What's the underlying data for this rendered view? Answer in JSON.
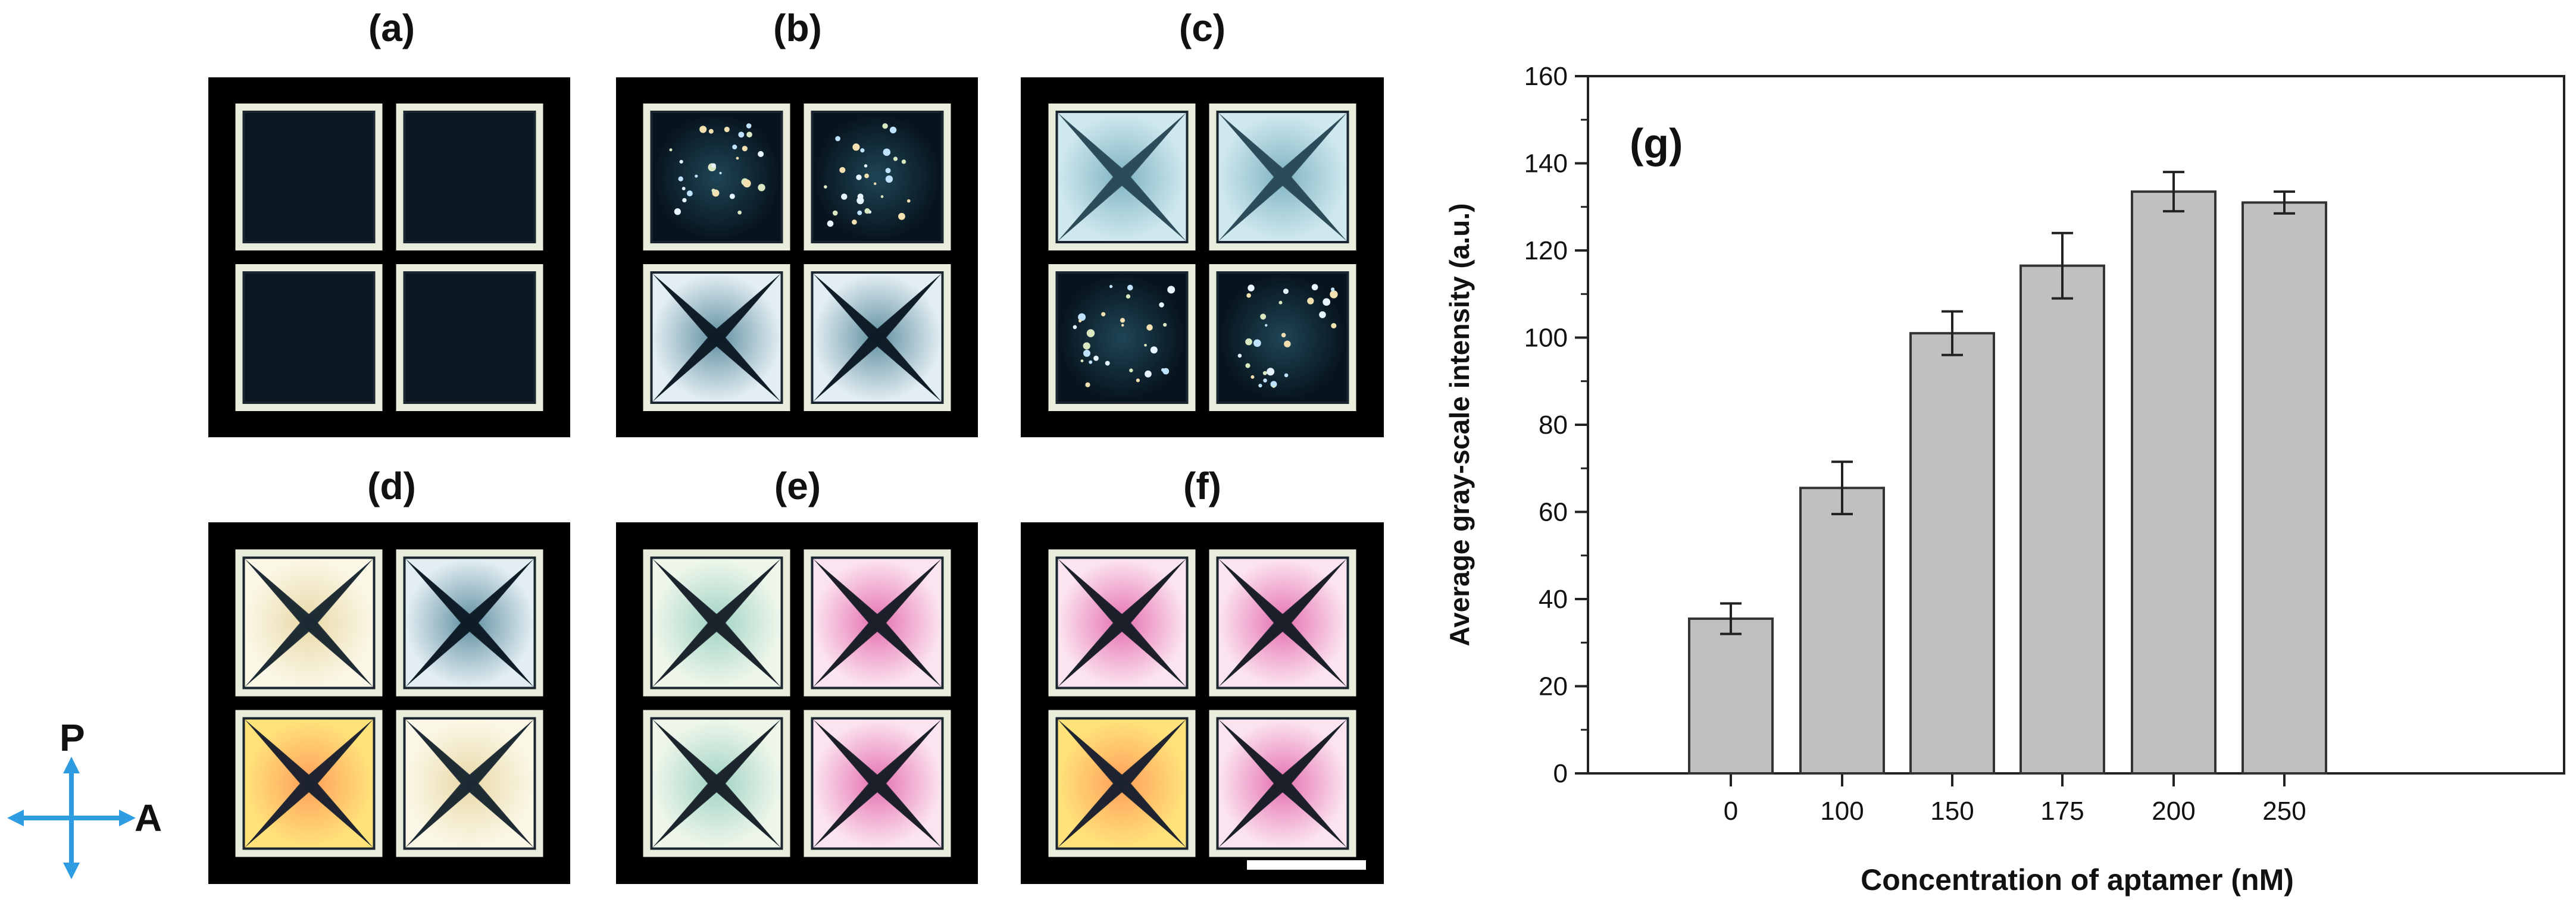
{
  "panels": {
    "a": {
      "label": "(a)"
    },
    "b": {
      "label": "(b)"
    },
    "c": {
      "label": "(c)"
    },
    "d": {
      "label": "(d)"
    },
    "e": {
      "label": "(e)"
    },
    "f": {
      "label": "(f)"
    }
  },
  "polarizer": {
    "p_label": "P",
    "a_label": "A"
  },
  "colors": {
    "bar_fill": "#c0c0c0",
    "bar_stroke": "#333333",
    "polarizer_arrow": "#2f9be0"
  },
  "chart_data": {
    "type": "bar",
    "panel_label": "(g)",
    "categories": [
      "0",
      "100",
      "150",
      "175",
      "200",
      "250"
    ],
    "values": [
      35.5,
      65.5,
      101,
      116.5,
      133.5,
      131
    ],
    "errors": [
      3.5,
      6,
      5,
      7.5,
      4.5,
      2.5
    ],
    "xlabel": "Concentration of aptamer (nM)",
    "ylabel": "Average gray-scale intensity (a.u.)",
    "ylim": [
      0,
      160
    ],
    "yticks": [
      0,
      20,
      40,
      60,
      80,
      100,
      120,
      140,
      160
    ],
    "grid": false,
    "legend": "none"
  }
}
